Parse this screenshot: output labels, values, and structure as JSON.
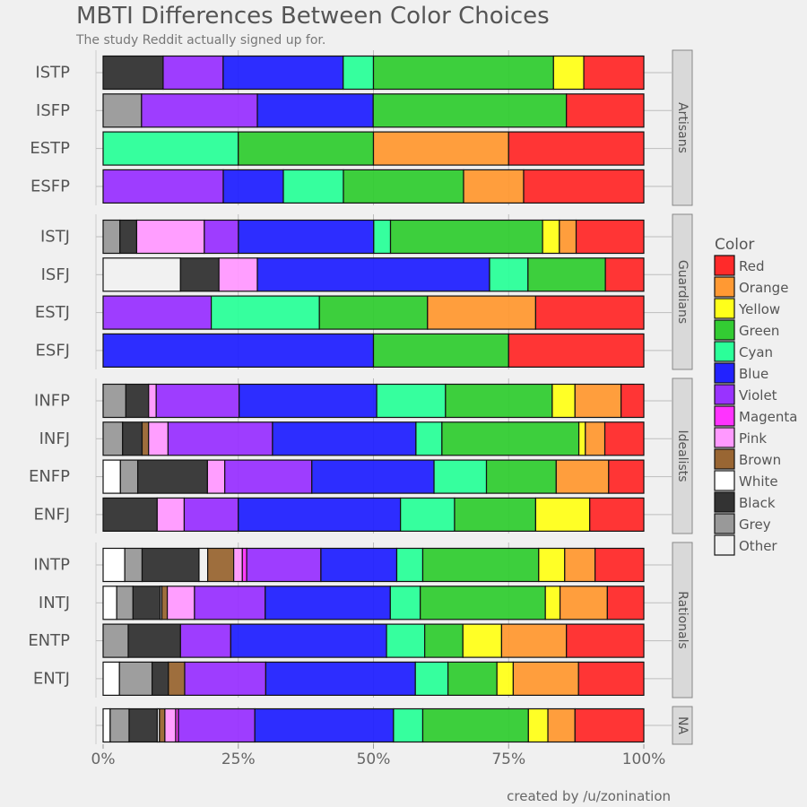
{
  "chart_data": {
    "type": "bar",
    "orientation": "horizontal",
    "stacked": "percent",
    "title": "MBTI Differences Between Color Choices",
    "subtitle": "The study Reddit actually signed up for.",
    "caption": "created by /u/zonination",
    "xlim": [
      0,
      1
    ],
    "x_ticks": [
      "0%",
      "25%",
      "50%",
      "75%",
      "100%"
    ],
    "grid": true,
    "legend": {
      "title": "Color",
      "position": "right"
    },
    "colors": [
      {
        "name": "Red",
        "hex": "#ff2a2a"
      },
      {
        "name": "Orange",
        "hex": "#ff9933"
      },
      {
        "name": "Yellow",
        "hex": "#ffff1a"
      },
      {
        "name": "Green",
        "hex": "#33cc33"
      },
      {
        "name": "Cyan",
        "hex": "#2bff99"
      },
      {
        "name": "Blue",
        "hex": "#2222ff"
      },
      {
        "name": "Violet",
        "hex": "#9933ff"
      },
      {
        "name": "Magenta",
        "hex": "#ff33ff"
      },
      {
        "name": "Pink",
        "hex": "#ff99ff"
      },
      {
        "name": "Brown",
        "hex": "#996633"
      },
      {
        "name": "White",
        "hex": "#ffffff"
      },
      {
        "name": "Black",
        "hex": "#333333"
      },
      {
        "name": "Grey",
        "hex": "#999999"
      },
      {
        "name": "Other",
        "hex": "#f0f0f0"
      }
    ],
    "panels": [
      {
        "name": "Artisans",
        "types": [
          {
            "label": "ISTP",
            "segments": [
              [
                "Black",
                0.111
              ],
              [
                "Violet",
                0.111
              ],
              [
                "Blue",
                0.222
              ],
              [
                "Cyan",
                0.056
              ],
              [
                "Green",
                0.333
              ],
              [
                "Yellow",
                0.056
              ],
              [
                "Red",
                0.111
              ]
            ]
          },
          {
            "label": "ISFP",
            "segments": [
              [
                "Grey",
                0.071
              ],
              [
                "Violet",
                0.214
              ],
              [
                "Blue",
                0.214
              ],
              [
                "Green",
                0.357
              ],
              [
                "Red",
                0.143
              ]
            ]
          },
          {
            "label": "ESTP",
            "segments": [
              [
                "Cyan",
                0.25
              ],
              [
                "Green",
                0.25
              ],
              [
                "Orange",
                0.25
              ],
              [
                "Red",
                0.25
              ]
            ]
          },
          {
            "label": "ESFP",
            "segments": [
              [
                "Violet",
                0.222
              ],
              [
                "Blue",
                0.111
              ],
              [
                "Cyan",
                0.111
              ],
              [
                "Green",
                0.222
              ],
              [
                "Orange",
                0.111
              ],
              [
                "Red",
                0.222
              ]
            ]
          }
        ]
      },
      {
        "name": "Guardians",
        "types": [
          {
            "label": "ISTJ",
            "segments": [
              [
                "Grey",
                0.031
              ],
              [
                "Black",
                0.031
              ],
              [
                "Pink",
                0.125
              ],
              [
                "Violet",
                0.063
              ],
              [
                "Blue",
                0.25
              ],
              [
                "Cyan",
                0.031
              ],
              [
                "Green",
                0.281
              ],
              [
                "Yellow",
                0.031
              ],
              [
                "Orange",
                0.031
              ],
              [
                "Red",
                0.125
              ]
            ]
          },
          {
            "label": "ISFJ",
            "segments": [
              [
                "Other",
                0.143
              ],
              [
                "Black",
                0.071
              ],
              [
                "Pink",
                0.071
              ],
              [
                "Blue",
                0.429
              ],
              [
                "Cyan",
                0.071
              ],
              [
                "Green",
                0.143
              ],
              [
                "Red",
                0.071
              ]
            ]
          },
          {
            "label": "ESTJ",
            "segments": [
              [
                "Violet",
                0.2
              ],
              [
                "Cyan",
                0.2
              ],
              [
                "Green",
                0.2
              ],
              [
                "Orange",
                0.2
              ],
              [
                "Red",
                0.2
              ]
            ]
          },
          {
            "label": "ESFJ",
            "segments": [
              [
                "Blue",
                0.5
              ],
              [
                "Green",
                0.25
              ],
              [
                "Red",
                0.25
              ]
            ]
          }
        ]
      },
      {
        "name": "Idealists",
        "types": [
          {
            "label": "INFP",
            "segments": [
              [
                "Grey",
                0.042
              ],
              [
                "Black",
                0.042
              ],
              [
                "Pink",
                0.014
              ],
              [
                "Violet",
                0.153
              ],
              [
                "Blue",
                0.254
              ],
              [
                "Cyan",
                0.127
              ],
              [
                "Green",
                0.197
              ],
              [
                "Yellow",
                0.042
              ],
              [
                "Orange",
                0.085
              ],
              [
                "Red",
                0.042
              ]
            ]
          },
          {
            "label": "INFJ",
            "segments": [
              [
                "Grey",
                0.036
              ],
              [
                "Black",
                0.036
              ],
              [
                "Brown",
                0.012
              ],
              [
                "Pink",
                0.036
              ],
              [
                "Violet",
                0.193
              ],
              [
                "Blue",
                0.265
              ],
              [
                "Cyan",
                0.048
              ],
              [
                "Green",
                0.253
              ],
              [
                "Yellow",
                0.012
              ],
              [
                "Orange",
                0.036
              ],
              [
                "Red",
                0.072
              ]
            ]
          },
          {
            "label": "ENFP",
            "segments": [
              [
                "White",
                0.032
              ],
              [
                "Grey",
                0.032
              ],
              [
                "Black",
                0.129
              ],
              [
                "Pink",
                0.032
              ],
              [
                "Violet",
                0.161
              ],
              [
                "Blue",
                0.226
              ],
              [
                "Cyan",
                0.097
              ],
              [
                "Green",
                0.129
              ],
              [
                "Orange",
                0.097
              ],
              [
                "Red",
                0.065
              ]
            ]
          },
          {
            "label": "ENFJ",
            "segments": [
              [
                "Black",
                0.1
              ],
              [
                "Pink",
                0.05
              ],
              [
                "Violet",
                0.1
              ],
              [
                "Blue",
                0.3
              ],
              [
                "Cyan",
                0.1
              ],
              [
                "Green",
                0.15
              ],
              [
                "Yellow",
                0.1
              ],
              [
                "Orange",
                0.0
              ],
              [
                "Red",
                0.1
              ]
            ]
          }
        ]
      },
      {
        "name": "Rationals",
        "types": [
          {
            "label": "INTP",
            "segments": [
              [
                "White",
                0.04
              ],
              [
                "Grey",
                0.032
              ],
              [
                "Black",
                0.105
              ],
              [
                "Other",
                0.016
              ],
              [
                "Brown",
                0.048
              ],
              [
                "Pink",
                0.016
              ],
              [
                "Magenta",
                0.008
              ],
              [
                "Violet",
                0.137
              ],
              [
                "Blue",
                0.14
              ],
              [
                "Cyan",
                0.048
              ],
              [
                "Green",
                0.214
              ],
              [
                "Yellow",
                0.048
              ],
              [
                "Orange",
                0.056
              ],
              [
                "Red",
                0.09
              ]
            ]
          },
          {
            "label": "INTJ",
            "segments": [
              [
                "White",
                0.025
              ],
              [
                "Grey",
                0.03
              ],
              [
                "Black",
                0.05
              ],
              [
                "Other",
                0.003
              ],
              [
                "Brown",
                0.01
              ],
              [
                "Pink",
                0.05
              ],
              [
                "Violet",
                0.13
              ],
              [
                "Blue",
                0.23
              ],
              [
                "Cyan",
                0.055
              ],
              [
                "Green",
                0.23
              ],
              [
                "Yellow",
                0.027
              ],
              [
                "Orange",
                0.087
              ],
              [
                "Red",
                0.067
              ]
            ]
          },
          {
            "label": "ENTP",
            "segments": [
              [
                "Grey",
                0.05
              ],
              [
                "Black",
                0.104
              ],
              [
                "Violet",
                0.1
              ],
              [
                "Blue",
                0.31
              ],
              [
                "Cyan",
                0.076
              ],
              [
                "Green",
                0.076
              ],
              [
                "Yellow",
                0.077
              ],
              [
                "Orange",
                0.129
              ],
              [
                "Red",
                0.154
              ]
            ]
          },
          {
            "label": "ENTJ",
            "segments": [
              [
                "White",
                0.03
              ],
              [
                "Grey",
                0.06
              ],
              [
                "Black",
                0.03
              ],
              [
                "Brown",
                0.03
              ],
              [
                "Violet",
                0.149
              ],
              [
                "Blue",
                0.275
              ],
              [
                "Cyan",
                0.06
              ],
              [
                "Green",
                0.09
              ],
              [
                "Yellow",
                0.03
              ],
              [
                "Orange",
                0.12
              ],
              [
                "Red",
                0.12
              ]
            ]
          }
        ]
      },
      {
        "name": "NA",
        "types": [
          {
            "label": "",
            "segments": [
              [
                "White",
                0.013
              ],
              [
                "Grey",
                0.035
              ],
              [
                "Black",
                0.052
              ],
              [
                "Other",
                0.004
              ],
              [
                "Brown",
                0.01
              ],
              [
                "Pink",
                0.02
              ],
              [
                "Magenta",
                0.005
              ],
              [
                "Violet",
                0.141
              ],
              [
                "Blue",
                0.256
              ],
              [
                "Cyan",
                0.054
              ],
              [
                "Green",
                0.195
              ],
              [
                "Yellow",
                0.036
              ],
              [
                "Orange",
                0.05
              ],
              [
                "Red",
                0.127
              ]
            ]
          }
        ]
      }
    ]
  }
}
